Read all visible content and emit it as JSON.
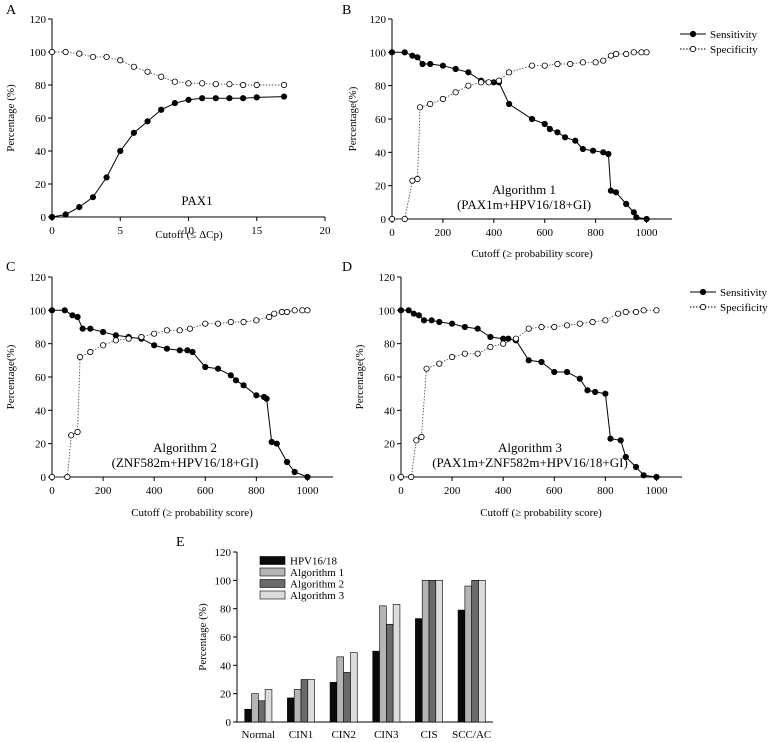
{
  "panel_labels": [
    "A",
    "B",
    "C",
    "D",
    "E"
  ],
  "chart_data": [
    {
      "panel": "A",
      "type": "line",
      "xlabel": "Cutoff (≤ ΔCp)",
      "ylabel": "Percentage (%)",
      "xlim": [
        0,
        20
      ],
      "ylim": [
        0,
        120
      ],
      "xticks": [
        0,
        5,
        10,
        15,
        20
      ],
      "yticks": [
        0,
        20,
        40,
        60,
        80,
        100,
        120
      ],
      "annotation": [
        "PAX1"
      ],
      "legend": false,
      "series": [
        {
          "name": "Sensitivity",
          "x": [
            0,
            1,
            2,
            3,
            4,
            5,
            6,
            7,
            8,
            9,
            10,
            11,
            12,
            13,
            14,
            15,
            17
          ],
          "y": [
            0,
            1.5,
            6,
            12,
            24,
            40,
            51,
            58,
            65,
            69,
            71,
            72,
            72,
            72,
            72,
            72.5,
            73
          ]
        },
        {
          "name": "Specificity",
          "x": [
            0,
            1,
            2,
            3,
            4,
            5,
            6,
            7,
            8,
            9,
            10,
            11,
            12,
            13,
            14,
            15,
            17
          ],
          "y": [
            100,
            100,
            99,
            97,
            97,
            95,
            91,
            88,
            85,
            82,
            81,
            81,
            80.5,
            80.5,
            80,
            80,
            80
          ]
        }
      ]
    },
    {
      "panel": "B",
      "type": "line",
      "xlabel": "Cutoff (≥ probability score)",
      "ylabel": "Percentage(%)",
      "xlim": [
        0,
        1100
      ],
      "ylim": [
        0,
        120
      ],
      "xticks": [
        0,
        200,
        400,
        600,
        800,
        1000
      ],
      "yticks": [
        0,
        20,
        40,
        60,
        80,
        100,
        120
      ],
      "annotation": [
        "Algorithm 1",
        "(PAX1m+HPV16/18+GI)"
      ],
      "legend": true,
      "series": [
        {
          "name": "Sensitivity",
          "x": [
            0,
            50,
            80,
            100,
            120,
            150,
            200,
            250,
            300,
            350,
            400,
            420,
            460,
            550,
            600,
            620,
            650,
            680,
            720,
            750,
            790,
            830,
            850,
            860,
            880,
            920,
            950,
            960,
            1000
          ],
          "y": [
            100,
            100,
            98,
            97,
            93,
            93,
            92,
            90,
            88,
            83,
            82,
            82,
            69,
            60,
            57,
            54,
            52,
            49,
            47,
            42,
            41,
            40,
            39,
            17,
            16,
            9,
            4,
            1,
            0
          ]
        },
        {
          "name": "Specificity",
          "x": [
            0,
            50,
            80,
            100,
            110,
            150,
            200,
            250,
            300,
            350,
            380,
            420,
            460,
            550,
            600,
            650,
            700,
            750,
            800,
            830,
            860,
            880,
            920,
            950,
            980,
            1000
          ],
          "y": [
            0,
            0,
            23,
            24,
            67,
            69,
            72,
            76,
            80,
            82,
            82,
            83,
            88,
            92,
            92,
            93,
            93,
            94,
            94,
            95,
            98,
            99,
            99,
            100,
            100,
            100
          ]
        }
      ]
    },
    {
      "panel": "C",
      "type": "line",
      "xlabel": "Cutoff (≥ probability score)",
      "ylabel": "Percentage(%)",
      "xlim": [
        0,
        1100
      ],
      "ylim": [
        0,
        120
      ],
      "xticks": [
        0,
        200,
        400,
        600,
        800,
        1000
      ],
      "yticks": [
        0,
        20,
        40,
        60,
        80,
        100,
        120
      ],
      "annotation": [
        "Algorithm 2",
        "(ZNF582m+HPV16/18+GI)"
      ],
      "legend": false,
      "series": [
        {
          "name": "Sensitivity",
          "x": [
            0,
            50,
            80,
            100,
            120,
            150,
            200,
            250,
            300,
            350,
            400,
            450,
            500,
            530,
            550,
            600,
            650,
            700,
            720,
            750,
            800,
            830,
            840,
            860,
            880,
            920,
            950,
            1000
          ],
          "y": [
            100,
            100,
            97,
            96,
            89,
            89,
            87,
            85,
            84,
            83,
            79,
            77,
            76,
            76,
            75,
            66,
            65,
            61,
            58,
            55,
            49,
            48,
            47,
            21,
            20,
            9,
            3,
            0
          ]
        },
        {
          "name": "Specificity",
          "x": [
            0,
            60,
            75,
            100,
            110,
            150,
            200,
            250,
            300,
            350,
            400,
            450,
            500,
            540,
            600,
            650,
            700,
            750,
            800,
            850,
            870,
            900,
            920,
            950,
            980,
            1000
          ],
          "y": [
            0,
            0,
            25,
            27,
            72,
            75,
            79,
            82,
            83,
            84,
            86,
            88,
            88,
            89,
            92,
            92,
            93,
            93,
            94,
            96,
            98,
            99,
            99,
            100,
            100,
            100
          ]
        }
      ]
    },
    {
      "panel": "D",
      "type": "line",
      "xlabel": "Cutoff (≥ probability score)",
      "ylabel": "Percentage(%)",
      "xlim": [
        0,
        1100
      ],
      "ylim": [
        0,
        120
      ],
      "xticks": [
        0,
        200,
        400,
        600,
        800,
        1000
      ],
      "yticks": [
        0,
        20,
        40,
        60,
        80,
        100,
        120
      ],
      "annotation": [
        "Algorithm 3",
        "(PAX1m+ZNF582m+HPV16/18+GI)"
      ],
      "legend": true,
      "series": [
        {
          "name": "Sensitivity",
          "x": [
            0,
            30,
            50,
            70,
            90,
            120,
            150,
            200,
            250,
            300,
            350,
            400,
            420,
            450,
            500,
            550,
            600,
            650,
            700,
            730,
            760,
            800,
            820,
            860,
            880,
            920,
            950,
            1000
          ],
          "y": [
            100,
            100,
            98,
            97,
            94,
            94,
            93,
            92,
            90,
            89,
            84,
            83,
            83,
            82,
            70,
            69,
            63,
            63,
            59,
            52,
            51,
            50,
            23,
            22,
            12,
            6,
            1,
            0
          ]
        },
        {
          "name": "Specificity",
          "x": [
            0,
            40,
            60,
            80,
            100,
            150,
            200,
            250,
            300,
            350,
            400,
            450,
            500,
            550,
            600,
            650,
            700,
            750,
            800,
            850,
            880,
            920,
            950,
            1000
          ],
          "y": [
            0,
            0,
            22,
            24,
            65,
            68,
            72,
            74,
            74,
            78,
            80,
            83,
            89,
            90,
            90,
            91,
            92,
            93,
            94,
            98,
            99,
            99,
            100,
            100
          ]
        }
      ]
    },
    {
      "panel": "E",
      "type": "bar",
      "ylabel": "Percentage (%)",
      "ylim": [
        0,
        120
      ],
      "yticks": [
        0,
        20,
        40,
        60,
        80,
        100,
        120
      ],
      "categories": [
        "Normal",
        "CIN1",
        "CIN2",
        "CIN3",
        "CIS",
        "SCC/AC"
      ],
      "series": [
        {
          "name": "HPV16/18",
          "color": "#0a0a0a",
          "values": [
            9,
            17,
            28,
            50,
            73,
            79
          ]
        },
        {
          "name": "Algorithm 1",
          "color": "#b4b4b4",
          "values": [
            20,
            23,
            46,
            82,
            100,
            96
          ]
        },
        {
          "name": "Algorithm 2",
          "color": "#6a6a6a",
          "values": [
            15,
            30,
            35,
            69,
            100,
            100
          ]
        },
        {
          "name": "Algorithm 3",
          "color": "#dcdcdc",
          "values": [
            23,
            30,
            49,
            83,
            100,
            100
          ]
        }
      ]
    }
  ]
}
